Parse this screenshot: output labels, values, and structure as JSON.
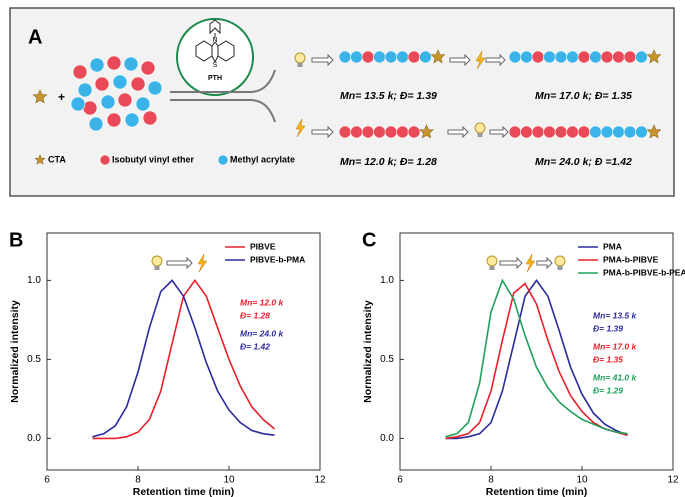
{
  "panel_a": {
    "label": "A",
    "plus": "+",
    "catalyst": {
      "name": "PTH",
      "n": "N",
      "s": "S"
    },
    "legend": [
      "CTA",
      "Isobutyl vinyl ether",
      "Methyl acrylate"
    ],
    "results": [
      "Mn= 13.5 k; Đ= 1.39",
      "Mn= 17.0 k; Đ= 1.35",
      "Mn= 12.0 k; Đ= 1.28",
      "Mn= 24.0 k; Đ =1.42"
    ]
  },
  "chart_data": [
    {
      "type": "line",
      "panel": "B",
      "xlabel": "Retention time (min)",
      "ylabel": "Normalized intensity",
      "xlim": [
        6,
        12
      ],
      "xticks": [
        6,
        8,
        10,
        12
      ],
      "ylim": [
        -0.2,
        1.3
      ],
      "yticks": [
        {
          "value": 0,
          "label": "0.0"
        },
        {
          "value": 0.5,
          "label": "0.5"
        },
        {
          "value": 1,
          "label": "1.0"
        }
      ],
      "legend": "upper right",
      "x": [
        7,
        7.25,
        7.5,
        7.75,
        8,
        8.25,
        8.5,
        8.75,
        9,
        9.25,
        9.5,
        9.75,
        10,
        10.25,
        10.5,
        10.75,
        11
      ],
      "series": [
        {
          "name": "PIBVE",
          "color": "#e8202a",
          "values": [
            0,
            0,
            0,
            0.01,
            0.04,
            0.12,
            0.3,
            0.6,
            0.9,
            1.0,
            0.9,
            0.7,
            0.5,
            0.33,
            0.2,
            0.12,
            0.06
          ]
        },
        {
          "name": "PIBVE-b-PMA",
          "color": "#2b2b9e",
          "values": [
            0.01,
            0.03,
            0.08,
            0.2,
            0.42,
            0.7,
            0.93,
            1.0,
            0.9,
            0.7,
            0.48,
            0.3,
            0.18,
            0.1,
            0.05,
            0.03,
            0.02
          ]
        }
      ],
      "annotations": [
        {
          "color": "#e8202a",
          "lines": [
            "Mn= 12.0 k",
            "Đ= 1.28"
          ]
        },
        {
          "color": "#2b2b9e",
          "lines": [
            "Mn= 24.0 k",
            "Đ= 1.42"
          ]
        }
      ]
    },
    {
      "type": "line",
      "panel": "C",
      "xlabel": "Retention time (min)",
      "ylabel": "Normalized intensity",
      "xlim": [
        6,
        12
      ],
      "xticks": [
        6,
        8,
        10,
        12
      ],
      "ylim": [
        -0.2,
        1.3
      ],
      "yticks": [
        {
          "value": 0,
          "label": "0.0"
        },
        {
          "value": 0.5,
          "label": "0.5"
        },
        {
          "value": 1,
          "label": "1.0"
        }
      ],
      "legend": "upper right",
      "x": [
        7,
        7.25,
        7.5,
        7.75,
        8,
        8.25,
        8.5,
        8.75,
        9,
        9.25,
        9.5,
        9.75,
        10,
        10.25,
        10.5,
        10.75,
        11
      ],
      "series": [
        {
          "name": "PMA",
          "color": "#2b2b9e",
          "values": [
            0,
            0,
            0.01,
            0.03,
            0.1,
            0.3,
            0.6,
            0.9,
            1.0,
            0.9,
            0.68,
            0.45,
            0.28,
            0.16,
            0.09,
            0.05,
            0.02
          ]
        },
        {
          "name": "PMA-b-PIBVE",
          "color": "#e8202a",
          "values": [
            0,
            0.01,
            0.03,
            0.1,
            0.3,
            0.62,
            0.92,
            0.98,
            0.85,
            0.62,
            0.42,
            0.27,
            0.17,
            0.1,
            0.06,
            0.04,
            0.02
          ]
        },
        {
          "name": "PMA-b-PIBVE-b-PEA",
          "color": "#1fa05a",
          "values": [
            0.01,
            0.03,
            0.1,
            0.35,
            0.8,
            1.0,
            0.88,
            0.65,
            0.45,
            0.32,
            0.23,
            0.17,
            0.12,
            0.09,
            0.06,
            0.04,
            0.03
          ]
        }
      ],
      "annotations": [
        {
          "color": "#2b2b9e",
          "lines": [
            "Mn= 13.5 k",
            "Đ= 1.39"
          ]
        },
        {
          "color": "#e8202a",
          "lines": [
            "Mn= 17.0 k",
            "Đ= 1.35"
          ]
        },
        {
          "color": "#1fa05a",
          "lines": [
            "Mn= 41.0 k",
            "Đ= 1.29"
          ]
        }
      ]
    }
  ]
}
